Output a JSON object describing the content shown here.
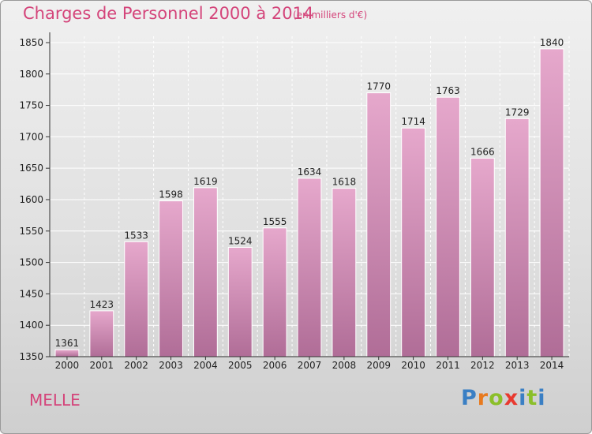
{
  "title": "Charges de Personnel 2000 à 2014",
  "subtitle": "(en milliers d'€)",
  "commune": "MELLE",
  "logo": {
    "text": "Proxiti",
    "letters": [
      "P",
      "r",
      "o",
      "x",
      "i",
      "t",
      "i"
    ],
    "colors": [
      "#3a7fc4",
      "#e87a1e",
      "#8bbf2a",
      "#e8392f",
      "#3a7fc4",
      "#8bbf2a",
      "#3a7fc4"
    ]
  },
  "chart_data": {
    "type": "bar",
    "categories": [
      "2000",
      "2001",
      "2002",
      "2003",
      "2004",
      "2005",
      "2006",
      "2007",
      "2008",
      "2009",
      "2010",
      "2011",
      "2012",
      "2013",
      "2014"
    ],
    "values": [
      1361,
      1423,
      1533,
      1598,
      1619,
      1524,
      1555,
      1634,
      1618,
      1770,
      1714,
      1763,
      1666,
      1729,
      1840
    ],
    "title": "Charges de Personnel 2000 à 2014",
    "xlabel": "",
    "ylabel": "",
    "ylim": [
      1350,
      1860
    ],
    "yticks": [
      1350,
      1400,
      1450,
      1500,
      1550,
      1600,
      1650,
      1700,
      1750,
      1800,
      1850
    ],
    "grid": true,
    "bar_color": "#d889b5",
    "data_labels": true
  }
}
